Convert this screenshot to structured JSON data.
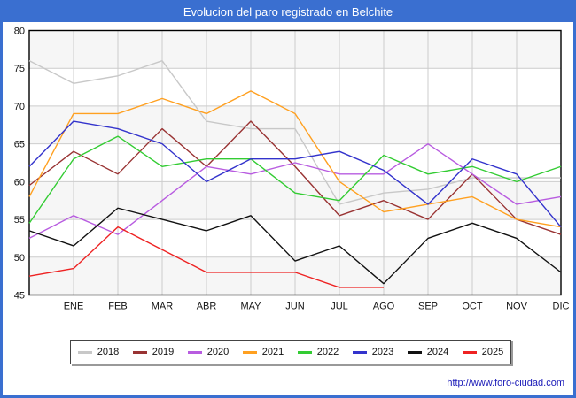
{
  "window": {
    "title": "Evolucion del paro registrado en Belchite"
  },
  "footer": {
    "url": "http://www.foro-ciudad.com"
  },
  "colors": {
    "frame": "#3a6fd0",
    "title_text": "#ffffff",
    "plot_border": "#000000",
    "gridline": "#cccccc",
    "band": "#f6f6f6",
    "tick_text": "#111111",
    "link": "#1a1ab8"
  },
  "chart_data": {
    "type": "line",
    "title": "Evolucion del paro registrado en Belchite",
    "xlabel": "",
    "ylabel": "",
    "x_categories": [
      "ENE",
      "FEB",
      "MAR",
      "ABR",
      "MAY",
      "JUN",
      "JUL",
      "AGO",
      "SEP",
      "OCT",
      "NOV",
      "DIC"
    ],
    "ylim": [
      45,
      80
    ],
    "y_ticks": [
      80,
      75,
      70,
      65,
      60,
      55,
      50,
      45
    ],
    "grid": true,
    "legend_position": "bottom",
    "series": [
      {
        "name": "2018",
        "color": "#c8c8c8",
        "start": 76,
        "values": [
          73,
          74,
          76,
          68,
          67,
          67,
          57,
          58.5,
          59,
          60.5,
          60.5,
          60.5
        ]
      },
      {
        "name": "2019",
        "color": "#993333",
        "start": 59.5,
        "values": [
          64,
          61,
          67,
          62,
          68,
          62,
          55.5,
          57.5,
          55,
          61,
          55,
          53
        ]
      },
      {
        "name": "2020",
        "color": "#b85ce0",
        "start": 52.5,
        "values": [
          55.5,
          53,
          57.5,
          62,
          61,
          62.5,
          61,
          61,
          65,
          61,
          57,
          58
        ]
      },
      {
        "name": "2021",
        "color": "#ffa020",
        "start": 58,
        "values": [
          69,
          69,
          71,
          69,
          72,
          69,
          60,
          56,
          57,
          58,
          55,
          54
        ]
      },
      {
        "name": "2022",
        "color": "#33cc33",
        "start": 54.5,
        "values": [
          63,
          66,
          62,
          63,
          63,
          58.5,
          57.5,
          63.5,
          61,
          62,
          60,
          62
        ]
      },
      {
        "name": "2023",
        "color": "#3333cc",
        "start": 62,
        "values": [
          68,
          67,
          65,
          60,
          63,
          63,
          64,
          61.5,
          57,
          63,
          61,
          54
        ]
      },
      {
        "name": "2024",
        "color": "#111111",
        "start": 53.5,
        "values": [
          51.5,
          56.5,
          55,
          53.5,
          55.5,
          49.5,
          51.5,
          46.5,
          52.5,
          54.5,
          52.5,
          48
        ]
      },
      {
        "name": "2025",
        "color": "#ee2222",
        "start": 47.5,
        "values": [
          48.5,
          54,
          51,
          48,
          48,
          48,
          46,
          46,
          null,
          null,
          null,
          null
        ]
      }
    ]
  }
}
